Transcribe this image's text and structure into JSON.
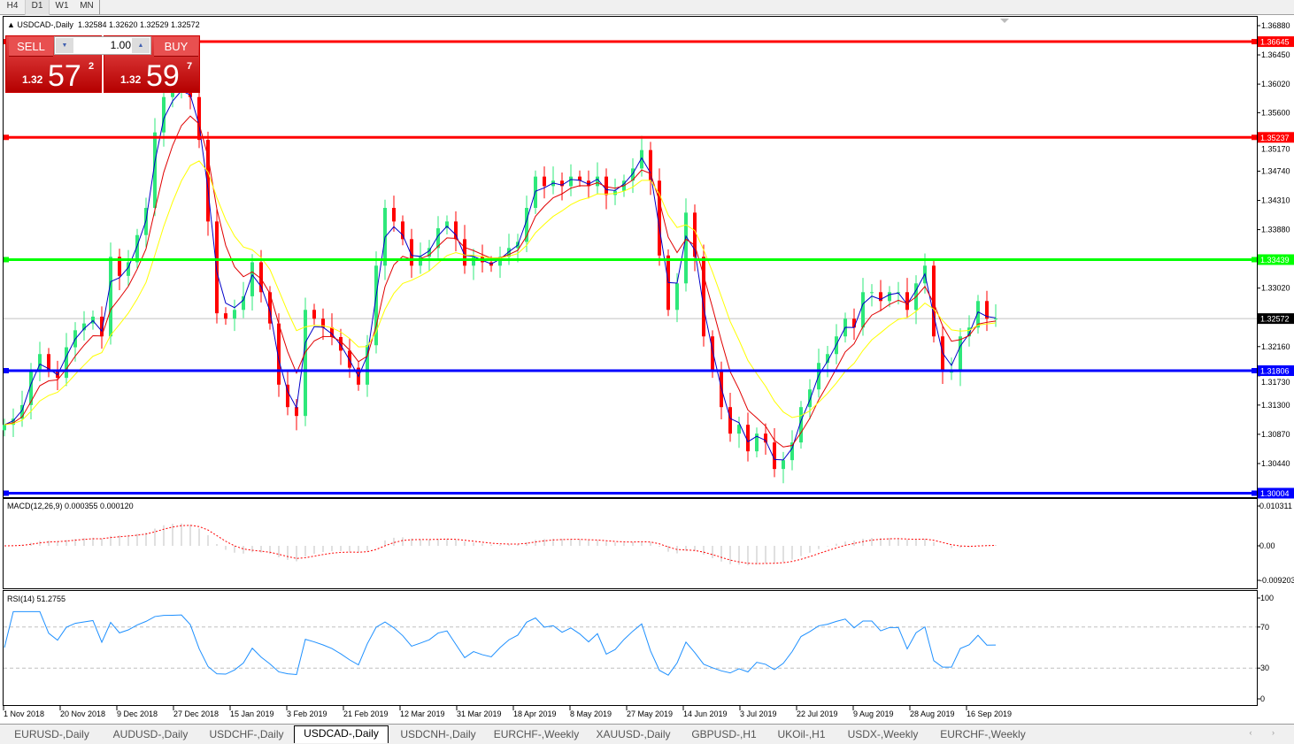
{
  "timeframes": [
    "H4",
    "D1",
    "W1",
    "MN"
  ],
  "active_timeframe": "D1",
  "chart": {
    "title": "USDCAD-,Daily",
    "ohlc": "1.32584 1.32620 1.32529 1.32572",
    "price_ticks": [
      "1.36880",
      "1.36450",
      "1.36020",
      "1.35600",
      "1.35170",
      "1.34740",
      "1.34310",
      "1.33880",
      "1.33020",
      "1.32160",
      "1.31730",
      "1.31300",
      "1.30870",
      "1.30440"
    ],
    "price_range": [
      1.30004,
      1.3688
    ],
    "bid": "1.32572",
    "hlines": [
      {
        "price": "1.36645",
        "color": "#ff0000"
      },
      {
        "price": "1.35237",
        "color": "#ff0000"
      },
      {
        "price": "1.33439",
        "color": "#00ff00"
      },
      {
        "price": "1.31806",
        "color": "#0000ff"
      },
      {
        "price": "1.30004",
        "color": "#0000ff"
      }
    ],
    "up_color": "#2ee87a",
    "down_color": "#ff0000",
    "ma_colors": [
      "#0000c8",
      "#e00000",
      "#ffff00"
    ],
    "closes": [
      1.3101,
      1.311,
      1.313,
      1.318,
      1.3205,
      1.318,
      1.317,
      1.3215,
      1.324,
      1.325,
      1.326,
      1.3231,
      1.3348,
      1.332,
      1.334,
      1.338,
      1.342,
      1.3531,
      1.3583,
      1.359,
      1.36,
      1.3583,
      1.352,
      1.34,
      1.3265,
      1.3257,
      1.327,
      1.329,
      1.334,
      1.3296,
      1.325,
      1.316,
      1.3127,
      1.3114,
      1.327,
      1.3257,
      1.3244,
      1.323,
      1.321,
      1.3185,
      1.316,
      1.3218,
      1.3335,
      1.342,
      1.34,
      1.3374,
      1.3335,
      1.3348,
      1.3361,
      1.339,
      1.34,
      1.3374,
      1.3335,
      1.3348,
      1.334,
      1.3335,
      1.3348,
      1.3361,
      1.337,
      1.342,
      1.3466,
      1.3452,
      1.346,
      1.3452,
      1.3466,
      1.346,
      1.3452,
      1.3466,
      1.3439,
      1.3445,
      1.346,
      1.3478,
      1.3505,
      1.346,
      1.335,
      1.327,
      1.3309,
      1.3413,
      1.3348,
      1.3231,
      1.3179,
      1.3127,
      1.3088,
      1.3101,
      1.3062,
      1.3088,
      1.3075,
      1.3036,
      1.3049,
      1.3075,
      1.3127,
      1.3153,
      1.3192,
      1.3205,
      1.3231,
      1.3257,
      1.3244,
      1.3296,
      1.3296,
      1.3283,
      1.3296,
      1.3296,
      1.327,
      1.3309,
      1.3335,
      1.3231,
      1.3179,
      1.3179,
      1.3231,
      1.3244,
      1.3283,
      1.3257,
      1.32572
    ]
  },
  "macd": {
    "label": "MACD(12,26,9) 0.000355 0.000120",
    "ticks": [
      "0.010311",
      "0.00",
      "-0.009203"
    ],
    "range": [
      -0.009203,
      0.010311
    ]
  },
  "rsi": {
    "label": "RSI(14) 51.2755",
    "ticks": [
      "100",
      "70",
      "30",
      "0"
    ],
    "levels": [
      70,
      30
    ]
  },
  "dates": [
    "1 Nov 2018",
    "20 Nov 2018",
    "9 Dec 2018",
    "27 Dec 2018",
    "15 Jan 2019",
    "3 Feb 2019",
    "21 Feb 2019",
    "12 Mar 2019",
    "31 Mar 2019",
    "18 Apr 2019",
    "8 May 2019",
    "27 May 2019",
    "14 Jun 2019",
    "3 Jul 2019",
    "22 Jul 2019",
    "9 Aug 2019",
    "28 Aug 2019",
    "16 Sep 2019"
  ],
  "trade": {
    "sell": "SELL",
    "buy": "BUY",
    "lot": "1.00",
    "sell_small": "1.32",
    "sell_big": "57",
    "sell_sup": "2",
    "buy_small": "1.32",
    "buy_big": "59",
    "buy_sup": "7"
  },
  "tabs": [
    "EURUSD-,Daily",
    "AUDUSD-,Daily",
    "USDCHF-,Daily",
    "USDCAD-,Daily",
    "USDCNH-,Daily",
    "EURCHF-,Weekly",
    "XAUUSD-,Daily",
    "GBPUSD-,H1",
    "UKOil-,H1",
    "USDX-,Weekly",
    "EURCHF-,Weekly"
  ],
  "active_tab": "USDCAD-,Daily",
  "scroll_arrows": "‹ ›"
}
